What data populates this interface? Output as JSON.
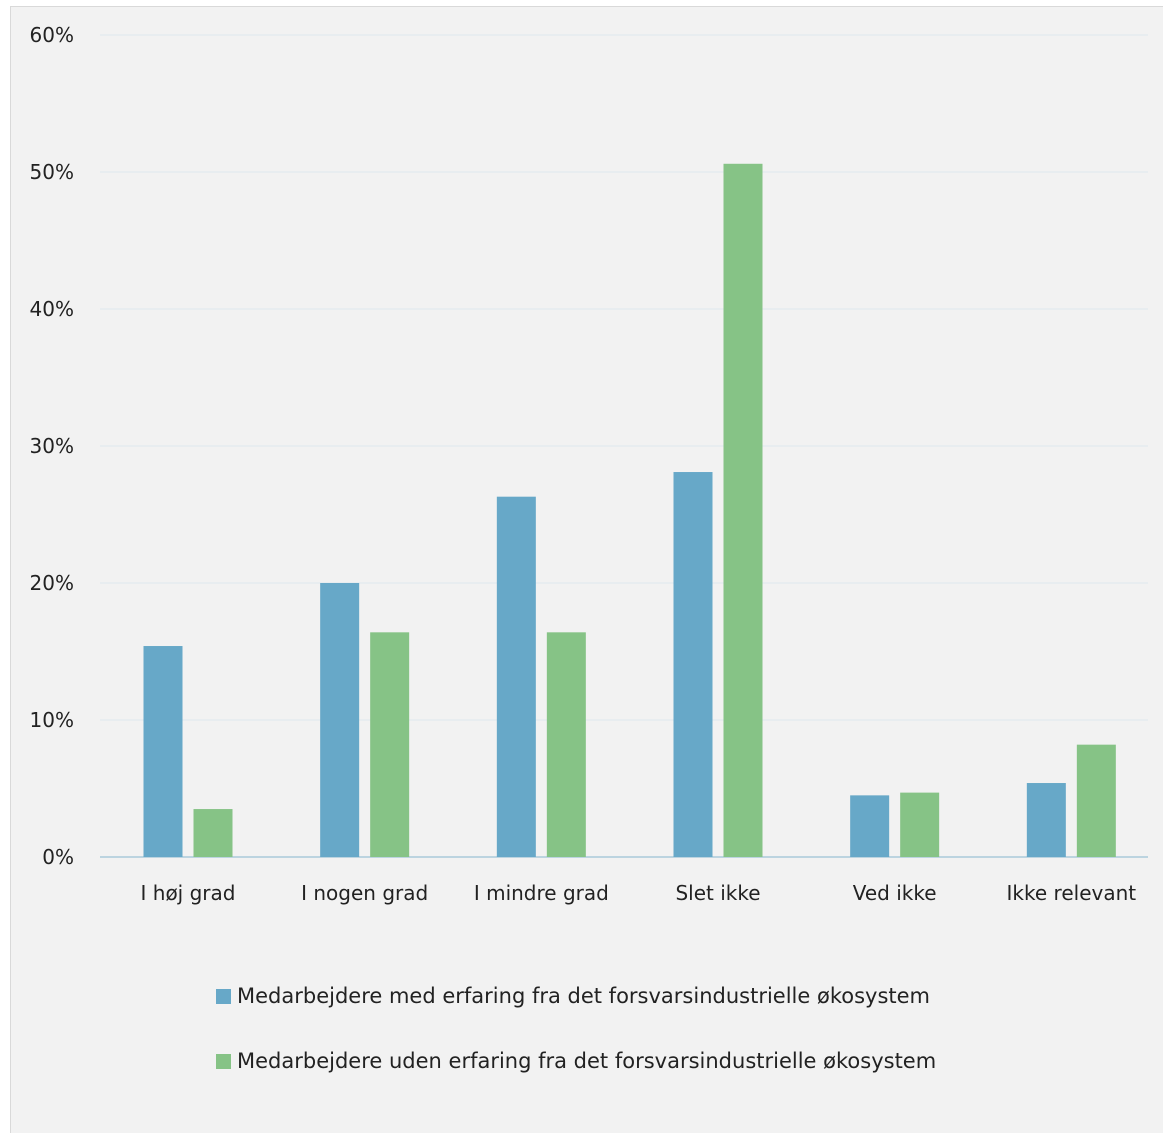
{
  "chart_data": {
    "type": "bar",
    "categories": [
      "I høj grad",
      "I nogen grad",
      "I mindre grad",
      "Slet ikke",
      "Ved ikke",
      "Ikke relevant"
    ],
    "series": [
      {
        "name": "Medarbejdere med erfaring fra det forsvarsindustrielle økosystem",
        "color": "#67a8c8",
        "values": [
          15.4,
          20.0,
          26.3,
          28.1,
          4.5,
          5.4
        ]
      },
      {
        "name": "Medarbejdere uden erfaring fra det forsvarsindustrielle økosystem",
        "color": "#86c386",
        "values": [
          3.5,
          16.4,
          16.4,
          50.6,
          4.7,
          8.2
        ]
      }
    ],
    "yticks": [
      "0%",
      "10%",
      "20%",
      "30%",
      "40%",
      "50%",
      "60%"
    ],
    "ylim": [
      0,
      60
    ],
    "grid": true,
    "legend_position": "bottom"
  }
}
